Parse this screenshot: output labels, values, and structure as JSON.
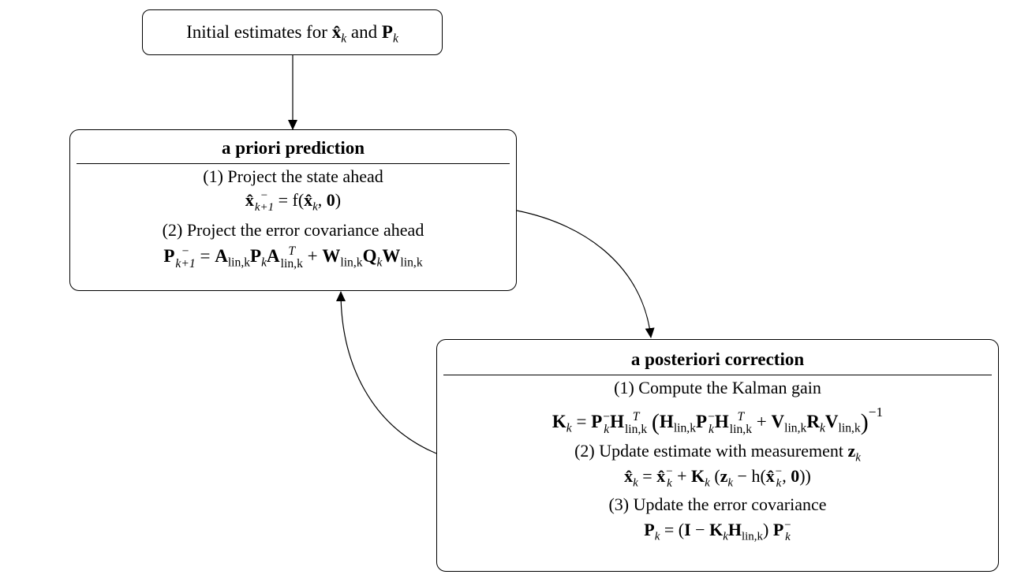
{
  "start_box": {
    "text_prefix": "Initial estimates for",
    "x_symbol": "x̂",
    "x_sub": "k",
    "and": "and",
    "p_symbol": "P",
    "p_sub": "k"
  },
  "prediction": {
    "title": "a priori prediction",
    "step1": "(1) Project the state ahead",
    "eq1": {
      "lhs": "x̂",
      "lhs_sup": "−",
      "lhs_sub": "k+1",
      "rhs_prefix": "= f(",
      "rhs_x": "x̂",
      "rhs_x_sub": "k",
      "rhs_zero": "0",
      "rhs_close": ")"
    },
    "step2": "(2) Project the error covariance ahead",
    "eq2": {
      "P": "P",
      "P_sup": "−",
      "P_sub": "k+1",
      "eq": "=",
      "A": "A",
      "A_sub": "lin,k",
      "Pk": "P",
      "Pk_sub": "k",
      "AT": "A",
      "AT_sup": "T",
      "AT_sub": "lin,k",
      "plus": "+",
      "W": "W",
      "W_sub": "lin,k",
      "Q": "Q",
      "Q_sub": "k",
      "W2": "W",
      "W2_sub": "lin,k"
    }
  },
  "correction": {
    "title": "a posteriori correction",
    "step1": "(1) Compute the Kalman gain",
    "eq1": {
      "K": "K",
      "K_sub": "k",
      "eq": "=",
      "P": "P",
      "P_sup": "−",
      "P_sub": "k",
      "H": "H",
      "H_sup": "T",
      "H_sub": "lin,k",
      "open": "(",
      "H2": "H",
      "H2_sub": "lin,k",
      "P2": "P",
      "P2_sup": "−",
      "P2_sub": "k",
      "H3": "H",
      "H3_sup": "T",
      "H3_sub": "lin,k",
      "plus": "+",
      "V": "V",
      "V_sub": "lin,k",
      "R": "R",
      "R_sub": "k",
      "V2": "V",
      "V2_sub": "lin,k",
      "close": ")",
      "inv": "−1"
    },
    "step2_prefix": "(2) Update estimate with measurement",
    "step2_z": "z",
    "step2_z_sub": "k",
    "eq2": {
      "x": "x̂",
      "x_sub": "k",
      "eq": "=",
      "x2": "x̂",
      "x2_sup": "−",
      "x2_sub": "k",
      "plus": "+",
      "K": "K",
      "K_sub": "k",
      "open": "(",
      "z": "z",
      "z_sub": "k",
      "minus": "− h(",
      "x3": "x̂",
      "x3_sup": "−",
      "x3_sub": "k",
      "comma": ",",
      "zero": "0",
      "close": "))"
    },
    "step3": "(3) Update the error covariance",
    "eq3": {
      "P": "P",
      "P_sub": "k",
      "eq": "= (",
      "I": "I",
      "minus": "−",
      "K": "K",
      "K_sub": "k",
      "H": "H",
      "H_sub": "lin,k",
      "close": ")",
      "P2": "P",
      "P2_sup": "−",
      "P2_sub": "k"
    }
  }
}
